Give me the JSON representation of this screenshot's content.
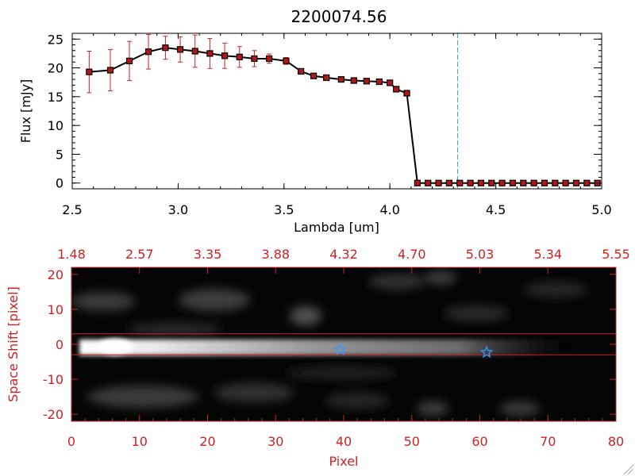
{
  "chart_data": [
    {
      "type": "line",
      "title": "2200074.56",
      "xlabel": "Lambda [um]",
      "ylabel": "Flux [mJy]",
      "xlim": [
        2.5,
        5.0
      ],
      "ylim": [
        -1,
        26
      ],
      "x_ticks": [
        "2.5",
        "3.0",
        "3.5",
        "4.0",
        "4.5",
        "5.0"
      ],
      "y_ticks": [
        "0",
        "5",
        "10",
        "15",
        "20",
        "25"
      ],
      "marker_line_value": 4.32,
      "series": [
        {
          "name": "flux",
          "x": [
            2.58,
            2.68,
            2.77,
            2.86,
            2.94,
            3.01,
            3.08,
            3.15,
            3.22,
            3.29,
            3.36,
            3.43,
            3.51,
            3.58,
            3.64,
            3.7,
            3.77,
            3.83,
            3.89,
            3.95,
            4.0,
            4.03,
            4.08,
            4.13,
            4.18,
            4.23,
            4.28,
            4.33,
            4.38,
            4.43,
            4.48,
            4.53,
            4.58,
            4.63,
            4.68,
            4.73,
            4.78,
            4.83,
            4.88,
            4.93,
            4.98
          ],
          "y": [
            19.3,
            19.6,
            21.2,
            22.8,
            23.5,
            23.2,
            22.9,
            22.5,
            22.1,
            21.9,
            21.6,
            21.6,
            21.2,
            19.4,
            18.6,
            18.3,
            18.0,
            17.8,
            17.7,
            17.6,
            17.4,
            16.3,
            15.6,
            0,
            0,
            0,
            0,
            0,
            0,
            0,
            0,
            0,
            0,
            0,
            0,
            0,
            0,
            0,
            0,
            0,
            0
          ],
          "yerr": [
            3.6,
            3.6,
            3.4,
            3.0,
            2.0,
            2.2,
            2.8,
            2.6,
            2.2,
            1.8,
            1.4,
            0.8,
            0.6,
            0.4,
            0.3,
            0.3,
            0.3,
            0.3,
            0.3,
            0.3,
            0.3,
            0.3,
            0.3,
            0,
            0,
            0,
            0,
            0,
            0,
            0,
            0,
            0,
            0,
            0,
            0,
            0,
            0,
            0,
            0,
            0,
            0
          ]
        }
      ]
    },
    {
      "type": "heatmap",
      "title": "",
      "xlabel": "Pixel",
      "ylabel": "Space Shift [pixel]",
      "xlim": [
        0,
        80
      ],
      "ylim": [
        -22,
        22
      ],
      "x_ticks": [
        "0",
        "10",
        "20",
        "30",
        "40",
        "50",
        "60",
        "70",
        "80"
      ],
      "y_ticks": [
        "-20",
        "-10",
        "0",
        "10",
        "20"
      ],
      "top_ticks": [
        "1.48",
        "2.57",
        "3.35",
        "3.88",
        "4.32",
        "4.70",
        "5.03",
        "5.34",
        "5.55"
      ],
      "aperture_lines": [
        3,
        -3
      ],
      "markers": [
        {
          "name": "star-1",
          "x": 39.5,
          "y": -1.5
        },
        {
          "name": "star-2",
          "x": 61.0,
          "y": -2.3
        }
      ]
    }
  ]
}
